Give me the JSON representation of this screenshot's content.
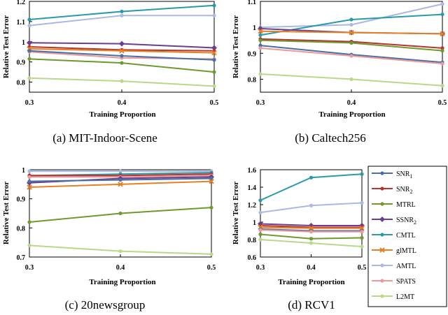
{
  "colors": {
    "SNR1": "#4a6fa5",
    "SNR2": "#b5352f",
    "MTRL": "#6f9a2e",
    "SSNR2": "#6b3f8f",
    "CMTL": "#2a9aa8",
    "glMTL": "#e58124",
    "AMTL": "#a9b9df",
    "SPATS": "#ea9a9a",
    "L2MT": "#b8d88a"
  },
  "legend": [
    {
      "key": "SNR1",
      "base": "SNR",
      "sub": "1"
    },
    {
      "key": "SNR2",
      "base": "SNR",
      "sub": "2"
    },
    {
      "key": "MTRL",
      "base": "MTRL",
      "sub": ""
    },
    {
      "key": "SSNR2",
      "base": "SSNR",
      "sub": "2"
    },
    {
      "key": "CMTL",
      "base": "CMTL",
      "sub": ""
    },
    {
      "key": "glMTL",
      "base": "glMTL",
      "sub": ""
    },
    {
      "key": "AMTL",
      "base": "AMTL",
      "sub": ""
    },
    {
      "key": "SPATS",
      "base": "SPATS",
      "sub": ""
    },
    {
      "key": "L2MT",
      "base": "L2MT",
      "sub": ""
    }
  ],
  "chart_data": [
    {
      "type": "line",
      "caption": "(a)  MIT-Indoor-Scene",
      "xlabel": "Training Proportion",
      "ylabel": "Relative Test Error",
      "x": [
        0.3,
        0.4,
        0.5
      ],
      "xticks": [
        "0.3",
        "0.4",
        "0.5"
      ],
      "ylim": [
        0.75,
        1.2
      ],
      "yticks": [
        0.8,
        0.9,
        1.0,
        1.1,
        1.2
      ],
      "yticklabels": [
        "0.8",
        "0.9",
        "1",
        "1.1",
        "1.2"
      ],
      "series": [
        {
          "name": "CMTL",
          "values": [
            1.11,
            1.15,
            1.18
          ]
        },
        {
          "name": "AMTL",
          "values": [
            1.08,
            1.13,
            1.13
          ]
        },
        {
          "name": "SSNR2",
          "values": [
            0.995,
            0.99,
            0.97
          ]
        },
        {
          "name": "SNR2",
          "values": [
            0.975,
            0.96,
            0.955
          ]
        },
        {
          "name": "glMTL",
          "values": [
            0.965,
            0.955,
            0.945
          ]
        },
        {
          "name": "SPATS",
          "values": [
            0.95,
            0.92,
            0.915
          ]
        },
        {
          "name": "SNR1",
          "values": [
            0.955,
            0.93,
            0.91
          ]
        },
        {
          "name": "MTRL",
          "values": [
            0.915,
            0.895,
            0.85
          ]
        },
        {
          "name": "L2MT",
          "values": [
            0.82,
            0.805,
            0.78
          ]
        }
      ]
    },
    {
      "type": "line",
      "caption": "(b)  Caltech256",
      "xlabel": "Training Proportion",
      "ylabel": "Relative Test Error",
      "x": [
        0.3,
        0.4,
        0.5
      ],
      "xticks": [
        "0.3",
        "0.4",
        "0.5"
      ],
      "ylim": [
        0.75,
        1.1
      ],
      "yticks": [
        0.8,
        0.9,
        1.0,
        1.1
      ],
      "yticklabels": [
        "0.8",
        "0.9",
        "1",
        "1.1"
      ],
      "series": [
        {
          "name": "AMTL",
          "values": [
            1.0,
            1.01,
            1.09
          ]
        },
        {
          "name": "CMTL",
          "values": [
            0.97,
            1.03,
            1.05
          ]
        },
        {
          "name": "SSNR2",
          "values": [
            0.995,
            0.98,
            0.975
          ]
        },
        {
          "name": "glMTL",
          "values": [
            0.985,
            0.98,
            0.975
          ]
        },
        {
          "name": "SNR2",
          "values": [
            0.955,
            0.945,
            0.92
          ]
        },
        {
          "name": "MTRL",
          "values": [
            0.95,
            0.94,
            0.91
          ]
        },
        {
          "name": "SNR1",
          "values": [
            0.93,
            0.895,
            0.865
          ]
        },
        {
          "name": "SPATS",
          "values": [
            0.92,
            0.89,
            0.86
          ]
        },
        {
          "name": "L2MT",
          "values": [
            0.82,
            0.8,
            0.775
          ]
        }
      ]
    },
    {
      "type": "line",
      "caption": "(c)  20newsgroup",
      "xlabel": "Training Proportion",
      "ylabel": "Relative Test Error",
      "x": [
        0.3,
        0.4,
        0.5
      ],
      "xticks": [
        "0.3",
        "0.4",
        "0.5"
      ],
      "ylim": [
        0.7,
        1.0
      ],
      "yticks": [
        0.7,
        0.8,
        0.9,
        1.0
      ],
      "yticklabels": [
        "0.7",
        "0.8",
        "0.9",
        "1"
      ],
      "series": [
        {
          "name": "AMTL",
          "values": [
            0.995,
            0.995,
            0.995
          ]
        },
        {
          "name": "CMTL",
          "values": [
            0.98,
            0.985,
            0.99
          ]
        },
        {
          "name": "SNR2",
          "values": [
            0.98,
            0.98,
            0.985
          ]
        },
        {
          "name": "SPATS",
          "values": [
            0.975,
            0.975,
            0.98
          ]
        },
        {
          "name": "SSNR2",
          "values": [
            0.955,
            0.97,
            0.975
          ]
        },
        {
          "name": "SNR1",
          "values": [
            0.96,
            0.965,
            0.97
          ]
        },
        {
          "name": "glMTL",
          "values": [
            0.94,
            0.95,
            0.96
          ]
        },
        {
          "name": "MTRL",
          "values": [
            0.82,
            0.85,
            0.87
          ]
        },
        {
          "name": "L2MT",
          "values": [
            0.74,
            0.72,
            0.71
          ]
        }
      ]
    },
    {
      "type": "line",
      "caption": "(d)  RCV1",
      "xlabel": "Training Proportion",
      "ylabel": "Relative Test Error",
      "x": [
        0.3,
        0.4,
        0.5
      ],
      "xticks": [
        "0.3",
        "0.4",
        "0.5"
      ],
      "ylim": [
        0.6,
        1.6
      ],
      "yticks": [
        0.6,
        0.8,
        1.0,
        1.2,
        1.4,
        1.6
      ],
      "yticklabels": [
        "0.6",
        "0.8",
        "1",
        "1.2",
        "1.4",
        "1.6"
      ],
      "series": [
        {
          "name": "CMTL",
          "values": [
            1.25,
            1.51,
            1.55
          ]
        },
        {
          "name": "AMTL",
          "values": [
            1.11,
            1.19,
            1.22
          ]
        },
        {
          "name": "SSNR2",
          "values": [
            0.98,
            0.96,
            0.96
          ]
        },
        {
          "name": "SNR2",
          "values": [
            0.96,
            0.94,
            0.94
          ]
        },
        {
          "name": "glMTL",
          "values": [
            0.94,
            0.93,
            0.93
          ]
        },
        {
          "name": "SNR1",
          "values": [
            0.92,
            0.9,
            0.9
          ]
        },
        {
          "name": "SPATS",
          "values": [
            0.91,
            0.89,
            0.89
          ]
        },
        {
          "name": "MTRL",
          "values": [
            0.86,
            0.81,
            0.82
          ]
        },
        {
          "name": "L2MT",
          "values": [
            0.8,
            0.76,
            0.72
          ]
        }
      ]
    }
  ]
}
